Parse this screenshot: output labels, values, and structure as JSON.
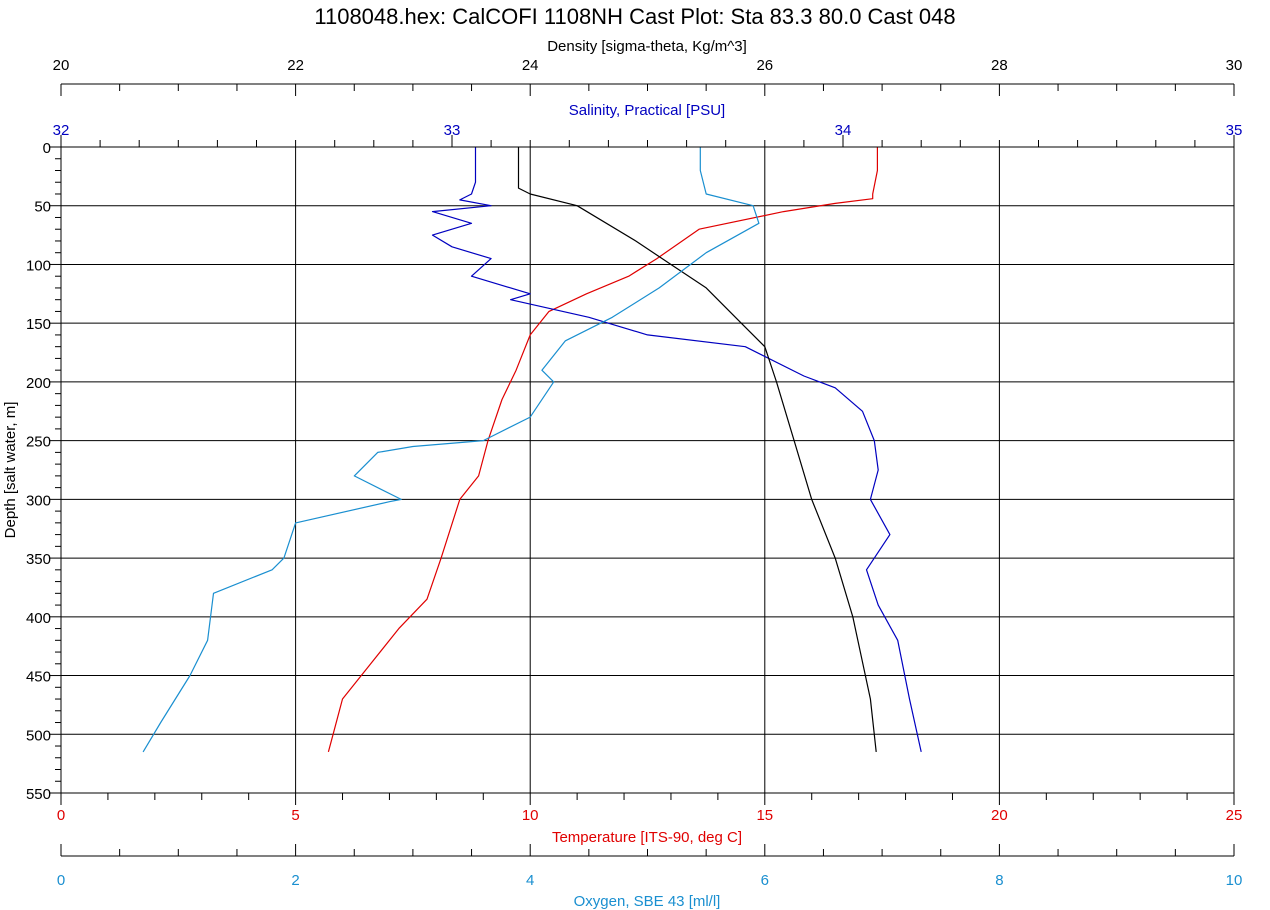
{
  "chart_data": {
    "type": "line",
    "title": "1108048.hex: CalCOFI 1108NH Cast Plot: Sta 83.3  80.0  Cast 048",
    "ylabel": "Depth [salt water, m]",
    "ylim": [
      0,
      550
    ],
    "y_inverted": true,
    "y_ticks": [
      "0",
      "50",
      "100",
      "150",
      "200",
      "250",
      "300",
      "350",
      "400",
      "450",
      "500",
      "550"
    ],
    "grid": true,
    "axes": {
      "density": {
        "label": "Density [sigma-theta, Kg/m^3]",
        "range": [
          20,
          30
        ],
        "ticks": [
          "20",
          "22",
          "24",
          "26",
          "28",
          "30"
        ],
        "position": "top",
        "color": "#000000"
      },
      "salinity": {
        "label": "Salinity, Practical [PSU]",
        "range": [
          32,
          35
        ],
        "ticks": [
          "32",
          "33",
          "34",
          "35"
        ],
        "position": "top",
        "color": "#0000C0"
      },
      "temperature": {
        "label": "Temperature [ITS-90, deg C]",
        "range": [
          0,
          25
        ],
        "ticks": [
          "0",
          "5",
          "10",
          "15",
          "20",
          "25"
        ],
        "position": "bottom",
        "color": "#E00000"
      },
      "oxygen": {
        "label": "Oxygen, SBE 43 [ml/l]",
        "range": [
          0,
          10
        ],
        "ticks": [
          "0",
          "2",
          "4",
          "6",
          "8",
          "10"
        ],
        "position": "bottom",
        "color": "#1A8FD0"
      }
    },
    "series": [
      {
        "axis": "temperature",
        "color": "#E00000",
        "x": [
          17.4,
          17.4,
          17.3,
          17.3,
          16.5,
          15.4,
          13.6,
          12.7,
          12.1,
          11.2,
          10.4,
          10.0,
          9.7,
          9.4,
          9.1,
          8.9,
          8.5,
          8.1,
          7.8,
          7.2,
          6.6,
          6.0,
          5.8,
          5.7
        ],
        "y": [
          0,
          20,
          40,
          44,
          48,
          55,
          70,
          95,
          110,
          125,
          140,
          160,
          190,
          215,
          250,
          280,
          300,
          350,
          385,
          410,
          440,
          470,
          500,
          515
        ]
      },
      {
        "axis": "salinity",
        "color": "#0000C0",
        "x": [
          33.06,
          33.06,
          33.05,
          33.02,
          33.1,
          32.95,
          33.05,
          32.95,
          33.0,
          33.1,
          33.05,
          33.2,
          33.15,
          33.35,
          33.5,
          33.75,
          33.9,
          33.98,
          34.05,
          34.08,
          34.09,
          34.07,
          34.12,
          34.06,
          34.09,
          34.14,
          34.17,
          34.2
        ],
        "y": [
          0,
          30,
          40,
          45,
          50,
          55,
          65,
          75,
          85,
          95,
          110,
          125,
          130,
          145,
          160,
          170,
          195,
          205,
          225,
          250,
          275,
          300,
          330,
          360,
          390,
          420,
          470,
          515
        ]
      },
      {
        "axis": "density",
        "color": "#000000",
        "x": [
          23.9,
          23.9,
          24.0,
          24.4,
          24.9,
          25.2,
          25.5,
          25.8,
          26.0,
          26.1,
          26.25,
          26.4,
          26.6,
          26.75,
          26.9,
          26.95
        ],
        "y": [
          0,
          35,
          40,
          50,
          80,
          100,
          120,
          150,
          170,
          200,
          250,
          300,
          350,
          400,
          470,
          515
        ]
      },
      {
        "axis": "oxygen",
        "color": "#1A8FD0",
        "x": [
          5.45,
          5.45,
          5.5,
          5.9,
          5.95,
          5.5,
          5.1,
          4.7,
          4.3,
          4.1,
          4.2,
          4.0,
          3.6,
          3.0,
          2.7,
          2.5,
          2.9,
          2.8,
          2.0,
          1.9,
          1.8,
          1.3,
          1.25,
          1.1,
          0.85,
          0.7
        ],
        "y": [
          0,
          20,
          40,
          50,
          65,
          90,
          120,
          145,
          165,
          190,
          200,
          230,
          250,
          255,
          260,
          280,
          300,
          302,
          320,
          350,
          360,
          380,
          420,
          450,
          490,
          515
        ]
      }
    ]
  }
}
